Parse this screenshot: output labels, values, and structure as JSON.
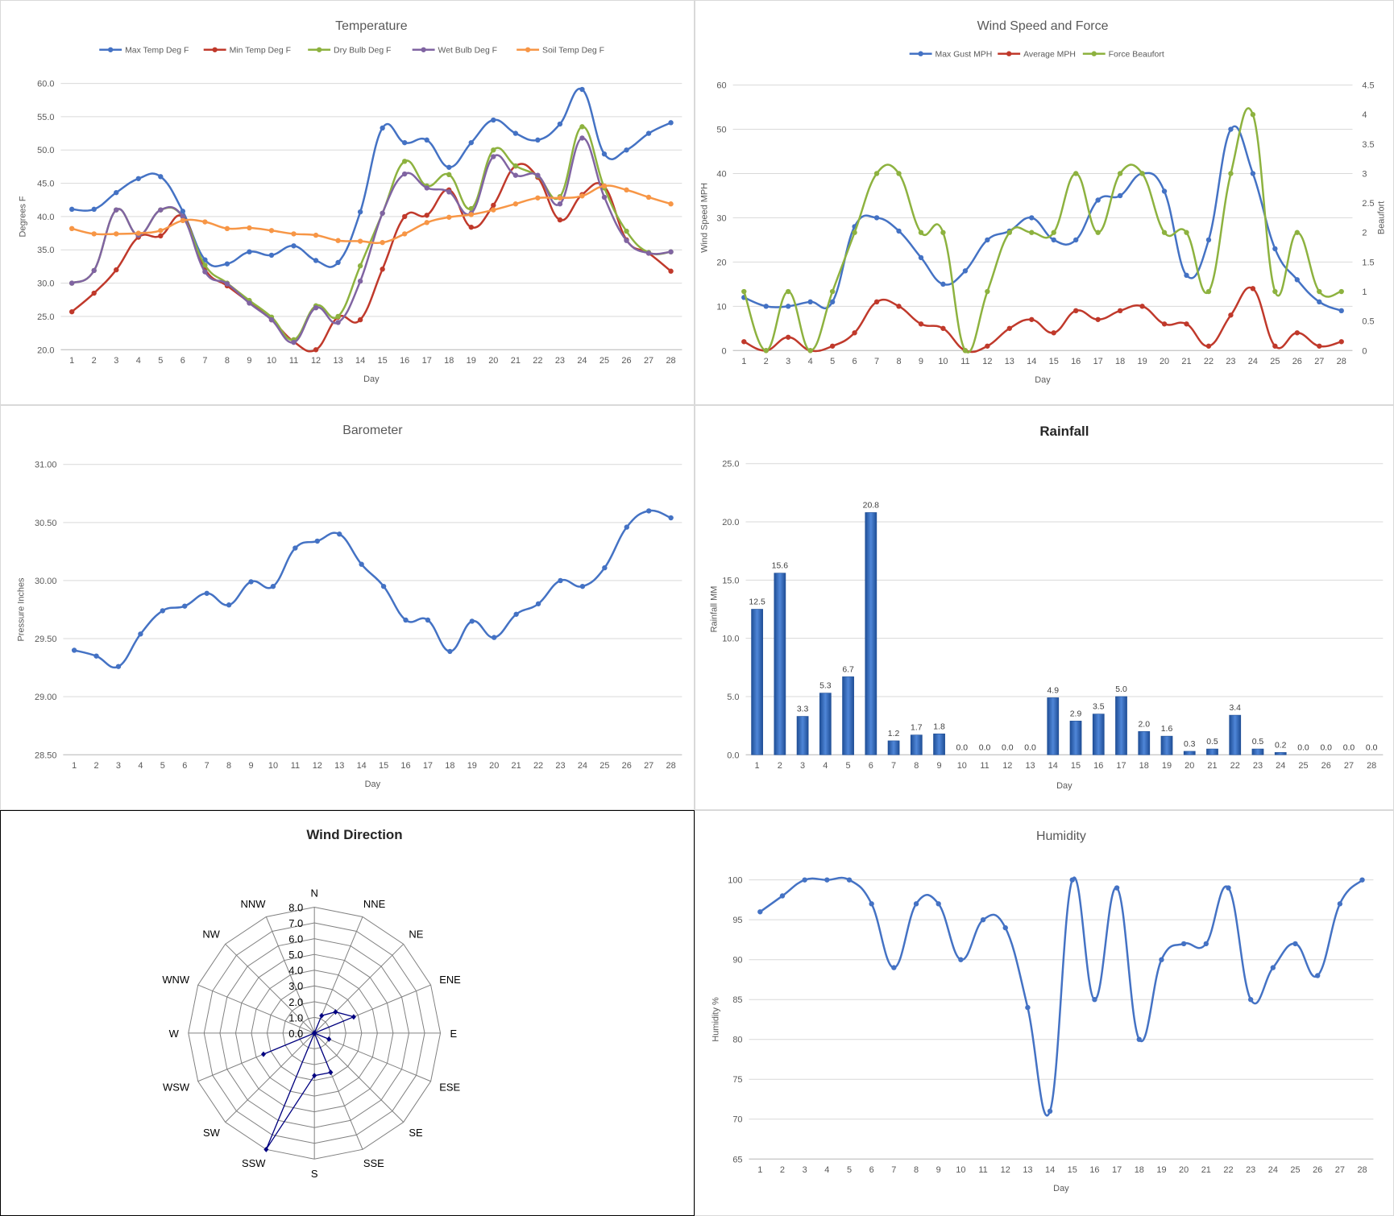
{
  "chart_data": [
    {
      "id": "temperature",
      "type": "line",
      "title": "Temperature",
      "xlabel": "Day",
      "ylabel": "Degrees F",
      "ylim": [
        20,
        60
      ],
      "yticks": [
        "20.0",
        "25.0",
        "30.0",
        "35.0",
        "40.0",
        "45.0",
        "50.0",
        "55.0",
        "60.0"
      ],
      "x": [
        1,
        2,
        3,
        4,
        5,
        6,
        7,
        8,
        9,
        10,
        11,
        12,
        13,
        14,
        15,
        16,
        17,
        18,
        19,
        20,
        21,
        22,
        23,
        24,
        25,
        26,
        27,
        28
      ],
      "series": [
        {
          "name": "Max Temp Deg F",
          "color": "#4472C4",
          "values": [
            41.1,
            41.1,
            43.6,
            45.7,
            46.0,
            40.8,
            33.5,
            32.9,
            34.7,
            34.2,
            35.6,
            33.4,
            33.1,
            40.7,
            53.3,
            51.1,
            51.5,
            47.4,
            51.1,
            54.5,
            52.5,
            51.5,
            53.9,
            59.1,
            49.4,
            50.0,
            52.5,
            54.1
          ]
        },
        {
          "name": "Min Temp Deg F",
          "color": "#C0392B",
          "values": [
            25.7,
            28.5,
            32.0,
            36.9,
            37.1,
            40.0,
            32.1,
            29.6,
            27.1,
            24.5,
            21.2,
            20.0,
            24.9,
            24.5,
            32.1,
            40.0,
            40.2,
            44.0,
            38.4,
            41.7,
            47.6,
            45.9,
            39.5,
            43.3,
            44.5,
            36.5,
            34.5,
            31.8
          ]
        },
        {
          "name": "Dry Bulb Deg F",
          "color": "#8DB23F",
          "values": [
            30.0,
            31.9,
            41.0,
            37.2,
            41.0,
            40.0,
            32.7,
            30.0,
            27.4,
            24.9,
            21.5,
            26.6,
            25.0,
            32.6,
            40.5,
            48.3,
            44.6,
            46.3,
            41.2,
            50.0,
            47.6,
            46.1,
            43.0,
            53.5,
            44.3,
            37.8,
            34.6,
            34.7
          ]
        },
        {
          "name": "Wet Bulb Deg F",
          "color": "#8064A2",
          "values": [
            30.0,
            31.9,
            41.0,
            37.2,
            41.0,
            40.0,
            31.7,
            29.9,
            27.0,
            24.5,
            21.1,
            26.3,
            24.1,
            30.3,
            40.5,
            46.4,
            44.3,
            43.7,
            40.5,
            49.0,
            46.2,
            46.2,
            41.9,
            51.8,
            42.9,
            36.4,
            34.5,
            34.7
          ]
        },
        {
          "name": "Soil Temp Deg F",
          "color": "#F79646",
          "values": [
            38.2,
            37.4,
            37.4,
            37.5,
            37.9,
            39.4,
            39.2,
            38.2,
            38.3,
            37.9,
            37.4,
            37.2,
            36.4,
            36.3,
            36.1,
            37.4,
            39.1,
            39.9,
            40.3,
            41.0,
            41.9,
            42.8,
            42.8,
            43.1,
            44.6,
            44.0,
            42.9,
            41.9
          ]
        }
      ]
    },
    {
      "id": "wind",
      "type": "line",
      "title": "Wind Speed and Force",
      "xlabel": "Day",
      "ylabel": "Wind Speed MPH",
      "y2label": "Beaufort",
      "ylim": [
        0,
        60
      ],
      "y2lim": [
        0,
        4.5
      ],
      "yticks": [
        "0",
        "10",
        "20",
        "30",
        "40",
        "50",
        "60"
      ],
      "y2ticks": [
        "0",
        "0.5",
        "1",
        "1.5",
        "2",
        "2.5",
        "3",
        "3.5",
        "4",
        "4.5"
      ],
      "x": [
        1,
        2,
        3,
        4,
        5,
        6,
        7,
        8,
        9,
        10,
        11,
        12,
        13,
        14,
        15,
        16,
        17,
        18,
        19,
        20,
        21,
        22,
        23,
        24,
        25,
        26,
        27,
        28
      ],
      "series": [
        {
          "name": "Max Gust MPH",
          "color": "#4472C4",
          "axis": "left",
          "values": [
            12,
            10,
            10,
            11,
            11,
            28,
            30,
            27,
            21,
            15,
            18,
            25,
            27,
            30,
            25,
            25,
            34,
            35,
            40,
            36,
            17,
            25,
            50,
            40,
            23,
            16,
            11,
            9
          ]
        },
        {
          "name": "Average MPH",
          "color": "#C0392B",
          "axis": "left",
          "values": [
            2,
            0,
            3,
            0,
            1,
            4,
            11,
            10,
            6,
            5,
            0,
            1,
            5,
            7,
            4,
            9,
            7,
            9,
            10,
            6,
            6,
            1,
            8,
            14,
            1,
            4,
            1,
            2
          ]
        },
        {
          "name": "Force Beaufort",
          "color": "#8DB23F",
          "axis": "right",
          "values": [
            1,
            0,
            1,
            0,
            1,
            2,
            3,
            3,
            2,
            2,
            0,
            1,
            2,
            2,
            2,
            3,
            2,
            3,
            3,
            2,
            2,
            1,
            3,
            4,
            1,
            2,
            1,
            1
          ]
        }
      ]
    },
    {
      "id": "barometer",
      "type": "line",
      "title": "Barometer",
      "xlabel": "Day",
      "ylabel": "Pressure Inches",
      "ylim": [
        28.5,
        31.0
      ],
      "yticks": [
        "28.50",
        "29.00",
        "29.50",
        "30.00",
        "30.50",
        "31.00"
      ],
      "x": [
        1,
        2,
        3,
        4,
        5,
        6,
        7,
        8,
        9,
        10,
        11,
        12,
        13,
        14,
        15,
        16,
        17,
        18,
        19,
        20,
        21,
        22,
        23,
        24,
        25,
        26,
        27,
        28
      ],
      "series": [
        {
          "name": "Barometer",
          "color": "#4472C4",
          "values": [
            29.4,
            29.35,
            29.26,
            29.54,
            29.74,
            29.78,
            29.89,
            29.79,
            29.99,
            29.95,
            30.28,
            30.34,
            30.4,
            30.14,
            29.95,
            29.66,
            29.66,
            29.39,
            29.65,
            29.51,
            29.71,
            29.8,
            30.0,
            29.95,
            30.11,
            30.46,
            30.6,
            30.54
          ]
        }
      ]
    },
    {
      "id": "rainfall",
      "type": "bar",
      "title": "Rainfall",
      "xlabel": "Day",
      "ylabel": "Rainfall MM",
      "ylim": [
        0,
        25
      ],
      "yticks": [
        "0.0",
        "5.0",
        "10.0",
        "15.0",
        "20.0",
        "25.0"
      ],
      "categories": [
        "1",
        "2",
        "3",
        "4",
        "5",
        "6",
        "7",
        "8",
        "9",
        "10",
        "11",
        "12",
        "13",
        "14",
        "15",
        "16",
        "17",
        "18",
        "19",
        "20",
        "21",
        "22",
        "23",
        "24",
        "25",
        "26",
        "27",
        "28"
      ],
      "values": [
        12.5,
        15.6,
        3.3,
        5.3,
        6.7,
        20.8,
        1.2,
        1.7,
        1.8,
        0.0,
        0.0,
        0.0,
        0.0,
        4.9,
        2.9,
        3.5,
        5.0,
        2.0,
        1.6,
        0.3,
        0.5,
        3.4,
        0.5,
        0.2,
        0.0,
        0.0,
        0.0,
        0.0
      ],
      "labels": [
        "12.5",
        "15.6",
        "3.3",
        "5.3",
        "6.7",
        "20.8",
        "1.2",
        "1.7",
        "1.8",
        "0.0",
        "0.0",
        "0.0",
        "0.0",
        "4.9",
        "2.9",
        "3.5",
        "5.0",
        "2.0",
        "1.6",
        "0.3",
        "0.5",
        "3.4",
        "0.5",
        "0.2",
        "0.0",
        "0.0",
        "0.0",
        "0.0"
      ],
      "color": "#2E64B4"
    },
    {
      "id": "winddir",
      "type": "radar",
      "title": "Wind Direction",
      "rlim": [
        0,
        8
      ],
      "rticks": [
        "0.0",
        "1.0",
        "2.0",
        "3.0",
        "4.0",
        "5.0",
        "6.0",
        "7.0",
        "8.0"
      ],
      "categories": [
        "N",
        "NNE",
        "NE",
        "ENE",
        "E",
        "ESE",
        "SE",
        "SSE",
        "S",
        "SSW",
        "SW",
        "WSW",
        "W",
        "WNW",
        "NW",
        "NNW"
      ],
      "values": [
        0,
        1.2,
        1.9,
        2.7,
        0,
        1,
        0,
        2.7,
        2.7,
        8,
        0,
        3.5,
        0,
        0,
        0,
        0
      ],
      "color": "#000080"
    },
    {
      "id": "humidity",
      "type": "line",
      "title": "Humidity",
      "xlabel": "Day",
      "ylabel": "Humidity %",
      "ylim": [
        65,
        100
      ],
      "yticks": [
        "65",
        "70",
        "75",
        "80",
        "85",
        "90",
        "95",
        "100"
      ],
      "x": [
        1,
        2,
        3,
        4,
        5,
        6,
        7,
        8,
        9,
        10,
        11,
        12,
        13,
        14,
        15,
        16,
        17,
        18,
        19,
        20,
        21,
        22,
        23,
        24,
        25,
        26,
        27,
        28
      ],
      "series": [
        {
          "name": "Humidity",
          "color": "#4472C4",
          "values": [
            96,
            98,
            100,
            100,
            100,
            97,
            89,
            97,
            97,
            90,
            95,
            94,
            84,
            71,
            100,
            85,
            99,
            80,
            90,
            92,
            92,
            99,
            85,
            89,
            92,
            88,
            97,
            100
          ]
        }
      ]
    }
  ]
}
